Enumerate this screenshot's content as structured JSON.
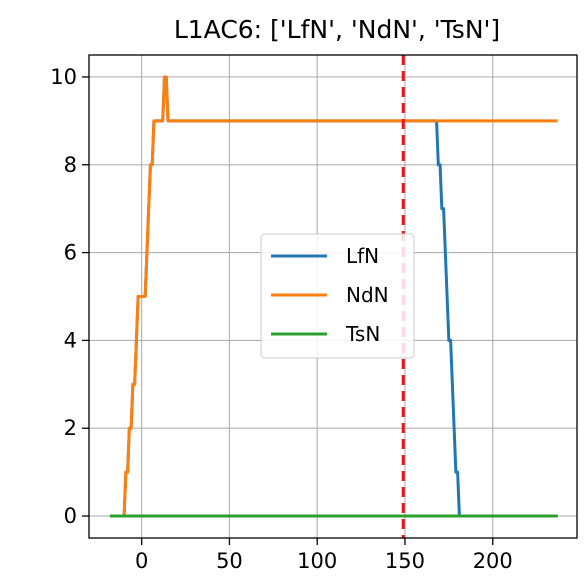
{
  "chart_data": {
    "type": "line",
    "title": "L1AC6: ['LfN', 'NdN', 'TsN']",
    "xlabel": "",
    "ylabel": "",
    "xlim": [
      -30,
      248
    ],
    "ylim": [
      -0.5,
      10.5
    ],
    "xticks": [
      0,
      50,
      100,
      150,
      200
    ],
    "yticks": [
      0,
      2,
      4,
      6,
      8,
      10
    ],
    "xtick_labels": [
      "0",
      "50",
      "100",
      "150",
      "200"
    ],
    "ytick_labels": [
      "0",
      "2",
      "4",
      "6",
      "8",
      "10"
    ],
    "grid": true,
    "legend_position": "center",
    "vertical_line": {
      "x": 149,
      "color": "#e8161b",
      "style": "dashed"
    },
    "series": [
      {
        "name": "LfN",
        "color": "#1f77b4",
        "x": [
          -18,
          -10,
          -9,
          -8,
          -7,
          -6,
          -5,
          -4,
          -3,
          -2,
          -1,
          0,
          1,
          2,
          3,
          4,
          5,
          6,
          7,
          8,
          9,
          10,
          11,
          12,
          13,
          14,
          15,
          16,
          17,
          18,
          168,
          169,
          170,
          171,
          172,
          173,
          174,
          175,
          176,
          177,
          178,
          179,
          180,
          181,
          182,
          237
        ],
        "y": [
          0,
          0,
          1,
          1,
          2,
          2,
          3,
          3,
          4,
          5,
          5,
          5,
          5,
          5,
          6,
          7,
          8,
          8,
          9,
          9,
          9,
          9,
          9,
          9,
          10,
          10,
          9,
          9,
          9,
          9,
          9,
          8,
          8,
          7,
          7,
          6,
          5,
          4,
          4,
          3,
          2,
          1,
          1,
          0,
          0,
          0
        ]
      },
      {
        "name": "NdN",
        "color": "#ff7f0e",
        "x": [
          -18,
          -10,
          -9,
          -8,
          -7,
          -6,
          -5,
          -4,
          -3,
          -2,
          -1,
          0,
          1,
          2,
          3,
          4,
          5,
          6,
          7,
          8,
          9,
          10,
          11,
          12,
          13,
          14,
          15,
          16,
          17,
          18,
          237
        ],
        "y": [
          0,
          0,
          1,
          1,
          2,
          2,
          3,
          3,
          4,
          5,
          5,
          5,
          5,
          5,
          6,
          7,
          8,
          8,
          9,
          9,
          9,
          9,
          9,
          9,
          10,
          10,
          9,
          9,
          9,
          9,
          9
        ]
      },
      {
        "name": "TsN",
        "color": "#2ca02c",
        "x": [
          -18,
          237
        ],
        "y": [
          0,
          0
        ]
      }
    ]
  }
}
